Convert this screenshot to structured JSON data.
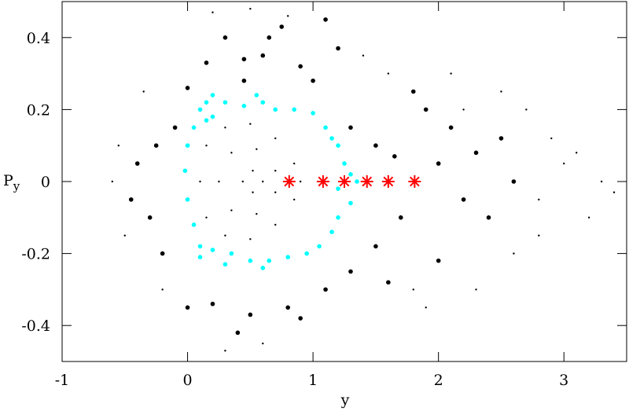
{
  "chart_data": {
    "type": "scatter",
    "xlabel": "y",
    "ylabel": "P",
    "ylabel_sub": "y",
    "xlim": [
      -1,
      3.5
    ],
    "ylim": [
      -0.5,
      0.5
    ],
    "xticks": [
      -1,
      0,
      1,
      2,
      3
    ],
    "yticks": [
      -0.4,
      -0.2,
      0,
      0.2,
      0.4
    ],
    "series": [
      {
        "marker": "dot-small",
        "color": "#000000",
        "x": [
          0.6,
          0.52,
          0.44,
          0.52,
          0.1,
          0.15,
          0.3,
          0.5,
          0.7,
          0.85,
          0.9,
          0.85,
          0.7,
          0.5,
          0.3,
          0.15,
          0.25,
          0.35,
          0.55,
          0.7,
          0.7,
          0.55,
          0.35,
          3.3,
          3.1,
          2.9,
          3.2,
          2.8,
          2.7,
          2.5,
          2.3,
          3.0,
          3.4,
          2.6,
          -0.6,
          -0.55,
          -0.5,
          -0.35,
          -0.2,
          0.2,
          0.5,
          0.8,
          0.3,
          0.6,
          1.4,
          1.6,
          1.9,
          2.1,
          2.8,
          2.2,
          1.8
        ],
        "y": [
          0,
          0.03,
          0,
          -0.03,
          0,
          0.1,
          0.15,
          0.16,
          0.12,
          0.05,
          0,
          -0.05,
          -0.12,
          -0.16,
          -0.15,
          -0.1,
          0,
          0.08,
          0.09,
          0.03,
          -0.03,
          -0.09,
          -0.08,
          0,
          0.08,
          0.12,
          -0.1,
          -0.15,
          0.2,
          0.25,
          -0.3,
          0.05,
          -0.03,
          -0.2,
          0,
          0.1,
          -0.15,
          0.25,
          -0.3,
          0.47,
          0.48,
          0.46,
          -0.47,
          -0.45,
          0.35,
          0.3,
          -0.35,
          0.3,
          -0.05,
          0.2,
          -0.3
        ]
      },
      {
        "marker": "dot-large",
        "color": "#000000",
        "x": [
          0.3,
          0.65,
          0.75,
          0.15,
          0.45,
          0.9,
          1.0,
          1.2,
          0.0,
          0.45,
          1.3,
          1.5,
          1.65,
          1.9,
          2.1,
          2.3,
          2.5,
          2.2,
          2.4,
          1.7,
          1.5,
          1.3,
          1.1,
          0.8,
          0.5,
          0.2,
          -0.2,
          -0.3,
          -0.4,
          -0.25,
          -0.1,
          0.0,
          0.4,
          0.9,
          1.6,
          2.0,
          1.8,
          2.0,
          2.6,
          -0.45,
          0.6,
          1.1
        ],
        "y": [
          0.4,
          0.4,
          0.43,
          0.33,
          0.34,
          0.32,
          0.28,
          0.37,
          0.26,
          0.28,
          0.15,
          0.1,
          0.07,
          0.2,
          0.15,
          0.08,
          0.12,
          -0.05,
          -0.1,
          -0.1,
          -0.18,
          -0.25,
          -0.3,
          -0.35,
          -0.37,
          -0.34,
          -0.2,
          -0.1,
          0.05,
          0.1,
          0.15,
          -0.35,
          -0.42,
          -0.38,
          -0.28,
          -0.22,
          0.25,
          0.05,
          0,
          -0.05,
          0.35,
          0.45
        ]
      },
      {
        "marker": "dot-large",
        "color": "#00ffff",
        "x": [
          0.1,
          0.15,
          0.2,
          0.3,
          0.45,
          0.6,
          0.7,
          0.85,
          1.0,
          1.1,
          1.2,
          1.25,
          1.3,
          1.2,
          1.3,
          1.2,
          1.15,
          1.05,
          0.95,
          0.8,
          0.65,
          0.5,
          0.35,
          0.2,
          0.1,
          0.05,
          0.0,
          -0.02,
          0.0,
          0.05,
          0.55,
          0.2,
          0.15,
          1.15,
          1.35,
          0.6,
          0.3,
          0.1
        ],
        "y": [
          0.2,
          0.22,
          0.18,
          0.22,
          0.21,
          0.22,
          0.2,
          0.2,
          0.19,
          0.15,
          0.1,
          0.05,
          0.02,
          -0.02,
          -0.06,
          -0.1,
          -0.14,
          -0.18,
          -0.2,
          -0.21,
          -0.22,
          -0.22,
          -0.2,
          -0.19,
          -0.18,
          -0.12,
          -0.05,
          0.03,
          0.1,
          0.15,
          0.24,
          0.24,
          0.17,
          0.12,
          0,
          -0.24,
          -0.23,
          -0.21
        ]
      },
      {
        "marker": "star",
        "color": "#ff0000",
        "x": [
          0.81,
          1.08,
          1.25,
          1.43,
          1.6,
          1.81
        ],
        "y": [
          0,
          0,
          0,
          0,
          0,
          0
        ]
      }
    ]
  }
}
